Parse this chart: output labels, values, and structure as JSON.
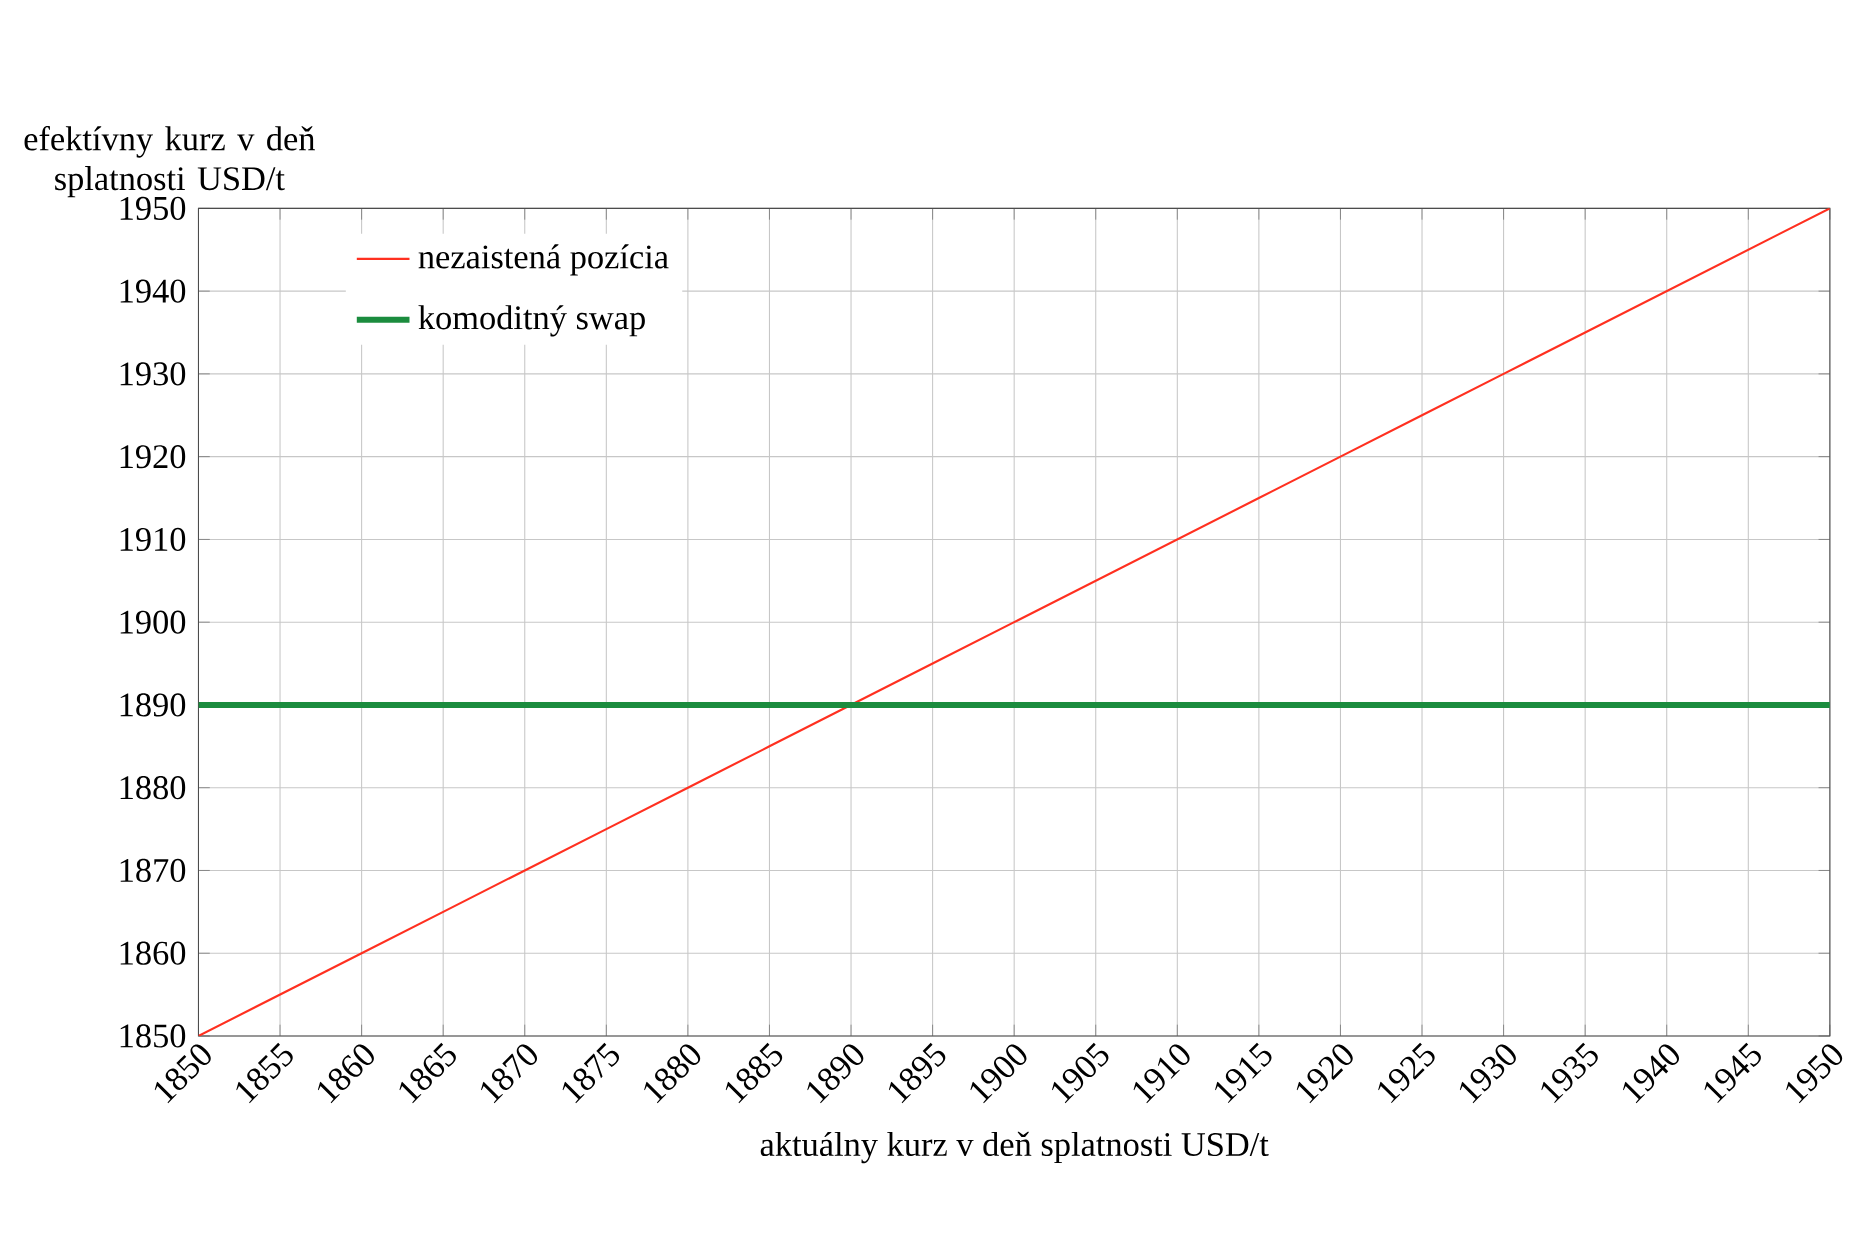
{
  "chart_data": {
    "type": "line",
    "xlabel": "aktuálny kurz v deň splatnosti USD/t",
    "ylabel": "efektívny kurz v deň splatnosti USD/t",
    "xlim": [
      1850,
      1950
    ],
    "xticks": [
      1850,
      1855,
      1860,
      1865,
      1870,
      1875,
      1880,
      1885,
      1890,
      1895,
      1900,
      1905,
      1910,
      1915,
      1920,
      1925,
      1930,
      1935,
      1940,
      1945,
      1950
    ],
    "ylim": [
      1850,
      1950
    ],
    "yticks": [
      1850,
      1860,
      1870,
      1880,
      1890,
      1900,
      1910,
      1920,
      1930,
      1940,
      1950
    ],
    "grid": true,
    "legend": "top left",
    "marker": "none",
    "line_style": "solid",
    "series": [
      {
        "name": "nezaistená pozícia",
        "color": "#ff3020",
        "x": [
          1850,
          1855,
          1860,
          1865,
          1870,
          1875,
          1880,
          1885,
          1890,
          1895,
          1900,
          1905,
          1910,
          1915,
          1920,
          1925,
          1930,
          1935,
          1940,
          1945,
          1950
        ],
        "values": [
          1850,
          1855,
          1860,
          1865,
          1870,
          1875,
          1880,
          1885,
          1890,
          1895,
          1900,
          1905,
          1910,
          1915,
          1920,
          1925,
          1930,
          1935,
          1940,
          1945,
          1950
        ]
      },
      {
        "name": "komoditný swap",
        "color": "#1b8c3e",
        "x": [
          1850,
          1950
        ],
        "values": [
          1890,
          1890
        ]
      }
    ]
  }
}
